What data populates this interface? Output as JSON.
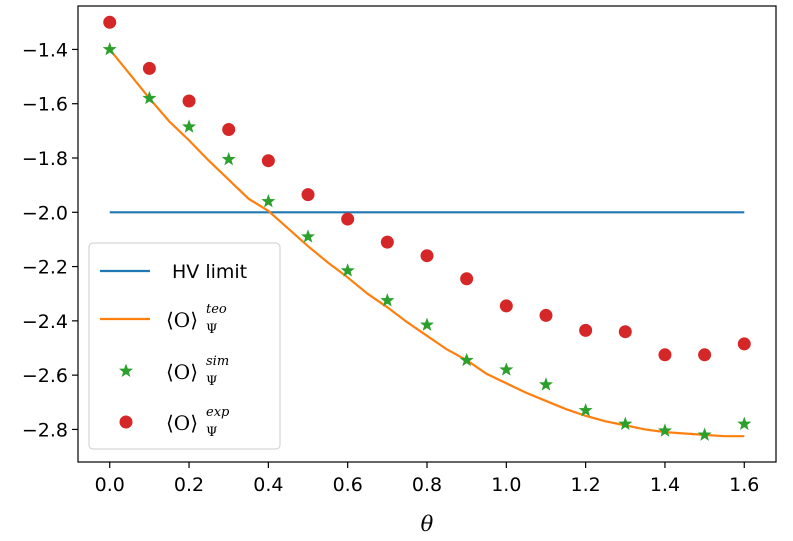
{
  "chart_data": {
    "type": "line",
    "xlabel": "θ",
    "ylabel": "",
    "xlim": [
      -0.08,
      1.68
    ],
    "ylim": [
      -2.92,
      -1.24
    ],
    "xticks": [
      0.0,
      0.2,
      0.4,
      0.6,
      0.8,
      1.0,
      1.2,
      1.4,
      1.6
    ],
    "xtick_labels": [
      "0.0",
      "0.2",
      "0.4",
      "0.6",
      "0.8",
      "1.0",
      "1.2",
      "1.4",
      "1.6"
    ],
    "yticks": [
      -1.4,
      -1.6,
      -1.8,
      -2.0,
      -2.2,
      -2.4,
      -2.6,
      -2.8
    ],
    "ytick_labels": [
      "−1.4",
      "−1.6",
      "−1.8",
      "−2.0",
      "−2.2",
      "−2.4",
      "−2.6",
      "−2.8"
    ],
    "grid": false,
    "legend_position": "lower-left",
    "series": [
      {
        "name": "HV limit",
        "kind": "line",
        "color": "#1f77b4",
        "x": [
          0.0,
          1.6
        ],
        "y": [
          -2.0,
          -2.0
        ]
      },
      {
        "name": "⟨O⟩Ψteo",
        "legend": {
          "base": "⟨O⟩",
          "sub": "Ψ",
          "sup": "teo"
        },
        "kind": "line",
        "color": "#ff7f0e",
        "x": [
          0.0,
          0.05,
          0.1,
          0.15,
          0.2,
          0.25,
          0.3,
          0.35,
          0.4,
          0.45,
          0.5,
          0.55,
          0.6,
          0.65,
          0.7,
          0.75,
          0.8,
          0.85,
          0.9,
          0.95,
          1.0,
          1.05,
          1.1,
          1.15,
          1.2,
          1.25,
          1.3,
          1.35,
          1.4,
          1.45,
          1.5,
          1.55,
          1.6
        ],
        "y": [
          -1.4,
          -1.49,
          -1.58,
          -1.665,
          -1.735,
          -1.81,
          -1.88,
          -1.95,
          -1.995,
          -2.06,
          -2.125,
          -2.185,
          -2.24,
          -2.3,
          -2.35,
          -2.405,
          -2.455,
          -2.505,
          -2.545,
          -2.595,
          -2.63,
          -2.665,
          -2.695,
          -2.725,
          -2.75,
          -2.77,
          -2.785,
          -2.8,
          -2.81,
          -2.815,
          -2.82,
          -2.825,
          -2.825
        ]
      },
      {
        "name": "⟨O⟩Ψsim",
        "legend": {
          "base": "⟨O⟩",
          "sub": "Ψ",
          "sup": "sim"
        },
        "kind": "scatter",
        "marker": "star",
        "color": "#2ca02c",
        "x": [
          0.0,
          0.1,
          0.2,
          0.3,
          0.4,
          0.5,
          0.6,
          0.7,
          0.8,
          0.9,
          1.0,
          1.1,
          1.2,
          1.3,
          1.4,
          1.5,
          1.6
        ],
        "y": [
          -1.4,
          -1.58,
          -1.685,
          -1.805,
          -1.96,
          -2.09,
          -2.215,
          -2.325,
          -2.415,
          -2.545,
          -2.58,
          -2.635,
          -2.73,
          -2.78,
          -2.805,
          -2.82,
          -2.78
        ]
      },
      {
        "name": "⟨O⟩Ψexp",
        "legend": {
          "base": "⟨O⟩",
          "sub": "Ψ",
          "sup": "exp"
        },
        "kind": "scatter",
        "marker": "circle",
        "color": "#d62728",
        "x": [
          0.0,
          0.1,
          0.2,
          0.3,
          0.4,
          0.5,
          0.6,
          0.7,
          0.8,
          0.9,
          1.0,
          1.1,
          1.2,
          1.3,
          1.4,
          1.5,
          1.6
        ],
        "y": [
          -1.3,
          -1.47,
          -1.59,
          -1.695,
          -1.81,
          -1.935,
          -2.025,
          -2.11,
          -2.16,
          -2.245,
          -2.345,
          -2.38,
          -2.435,
          -2.44,
          -2.525,
          -2.525,
          -2.485
        ]
      }
    ]
  }
}
